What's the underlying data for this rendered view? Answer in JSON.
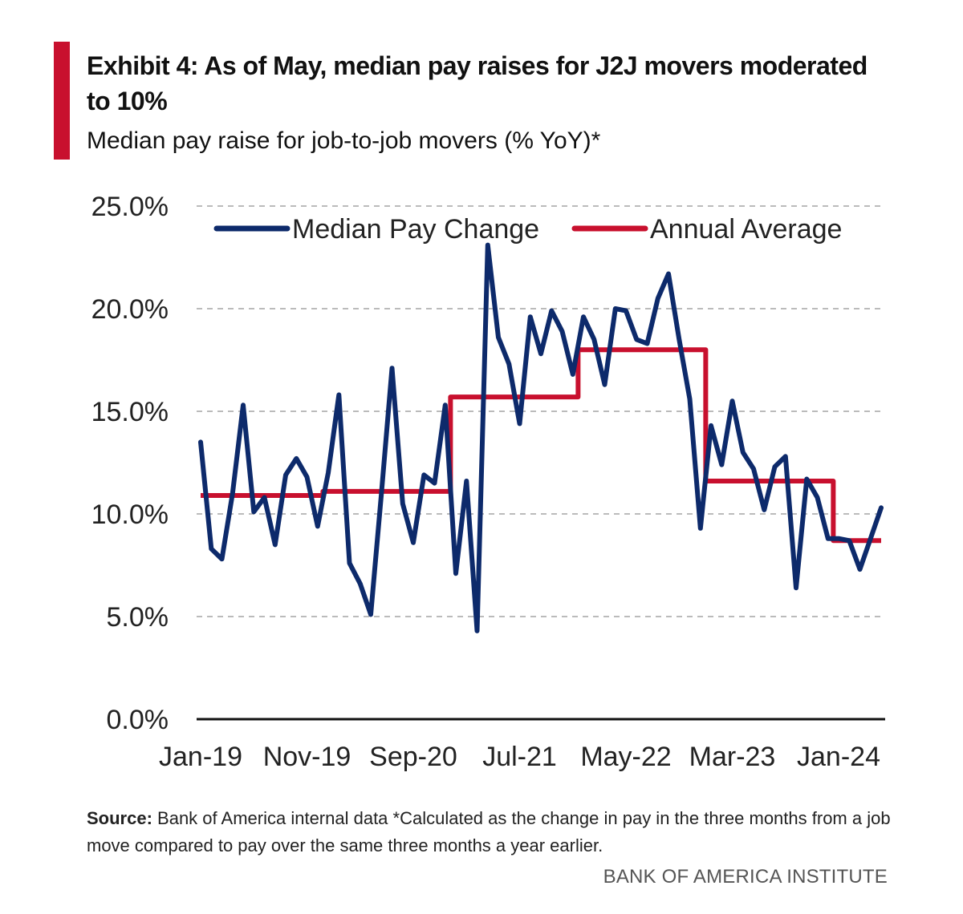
{
  "header": {
    "title": "Exhibit 4: As of May, median pay raises for J2J movers moderated to 10%",
    "subtitle": "Median pay raise for job-to-job movers (% YoY)*"
  },
  "footer": {
    "source_label": "Source:",
    "source_text": " Bank of America internal data *Calculated as the change in pay in the three months from a job move compared to pay over the same three months a year earlier.",
    "brand": "BANK OF AMERICA INSTITUTE"
  },
  "colors": {
    "accent": "#c8102e",
    "median": "#0d2a6b",
    "average": "#c8102e",
    "grid": "#bbbbbb"
  },
  "chart_data": {
    "type": "line",
    "title": "",
    "xlabel": "",
    "ylabel": "",
    "ylim": [
      0,
      25
    ],
    "yticks": [
      0,
      5,
      10,
      15,
      20,
      25
    ],
    "ytick_labels": [
      "0.0%",
      "5.0%",
      "10.0%",
      "15.0%",
      "20.0%",
      "25.0%"
    ],
    "xtick_labels": [
      "Jan-19",
      "Nov-19",
      "Sep-20",
      "Jul-21",
      "May-22",
      "Mar-23",
      "Jan-24"
    ],
    "xtick_index": [
      0,
      10,
      20,
      30,
      40,
      50,
      60
    ],
    "grid": true,
    "legend_position": "top",
    "x": [
      "Jan-19",
      "Feb-19",
      "Mar-19",
      "Apr-19",
      "May-19",
      "Jun-19",
      "Jul-19",
      "Aug-19",
      "Sep-19",
      "Oct-19",
      "Nov-19",
      "Dec-19",
      "Jan-20",
      "Feb-20",
      "Mar-20",
      "Apr-20",
      "May-20",
      "Jun-20",
      "Jul-20",
      "Aug-20",
      "Sep-20",
      "Oct-20",
      "Nov-20",
      "Dec-20",
      "Jan-21",
      "Feb-21",
      "Mar-21",
      "Apr-21",
      "May-21",
      "Jun-21",
      "Jul-21",
      "Aug-21",
      "Sep-21",
      "Oct-21",
      "Nov-21",
      "Dec-21",
      "Jan-22",
      "Feb-22",
      "Mar-22",
      "Apr-22",
      "May-22",
      "Jun-22",
      "Jul-22",
      "Aug-22",
      "Sep-22",
      "Oct-22",
      "Nov-22",
      "Dec-22",
      "Jan-23",
      "Feb-23",
      "Mar-23",
      "Apr-23",
      "May-23",
      "Jun-23",
      "Jul-23",
      "Aug-23",
      "Sep-23",
      "Oct-23",
      "Nov-23",
      "Dec-23",
      "Jan-24",
      "Feb-24",
      "Mar-24",
      "Apr-24",
      "May-24"
    ],
    "series": [
      {
        "name": "Median Pay Change",
        "values": [
          13.5,
          8.3,
          7.8,
          11.0,
          15.3,
          10.1,
          10.8,
          8.5,
          11.9,
          12.7,
          11.8,
          9.4,
          12.0,
          15.8,
          7.6,
          6.6,
          5.1,
          11.0,
          17.1,
          10.5,
          8.6,
          11.9,
          11.5,
          15.3,
          7.1,
          11.6,
          4.3,
          23.1,
          18.6,
          17.3,
          14.4,
          19.6,
          17.8,
          19.9,
          18.9,
          16.8,
          19.6,
          18.5,
          16.3,
          20.0,
          19.9,
          18.5,
          18.3,
          20.5,
          21.7,
          18.5,
          15.6,
          9.3,
          14.3,
          12.4,
          15.5,
          13.0,
          12.2,
          10.2,
          12.3,
          12.8,
          6.4,
          11.7,
          10.8,
          8.8,
          8.8,
          8.7,
          7.3,
          8.8,
          10.3
        ]
      },
      {
        "name": "Annual Average",
        "values": [
          10.9,
          10.9,
          10.9,
          10.9,
          10.9,
          10.9,
          10.9,
          10.9,
          10.9,
          10.9,
          10.9,
          10.9,
          11.1,
          11.1,
          11.1,
          11.1,
          11.1,
          11.1,
          11.1,
          11.1,
          11.1,
          11.1,
          11.1,
          11.1,
          15.7,
          15.7,
          15.7,
          15.7,
          15.7,
          15.7,
          15.7,
          15.7,
          15.7,
          15.7,
          15.7,
          15.7,
          18.0,
          18.0,
          18.0,
          18.0,
          18.0,
          18.0,
          18.0,
          18.0,
          18.0,
          18.0,
          18.0,
          18.0,
          11.6,
          11.6,
          11.6,
          11.6,
          11.6,
          11.6,
          11.6,
          11.6,
          11.6,
          11.6,
          11.6,
          11.6,
          8.7,
          8.7,
          8.7,
          8.7,
          8.7
        ]
      }
    ]
  }
}
